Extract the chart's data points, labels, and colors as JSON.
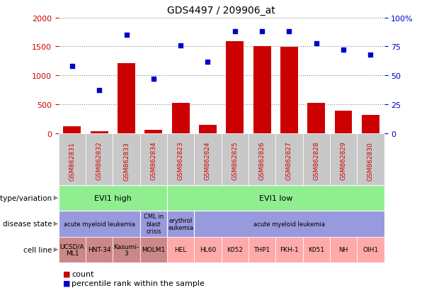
{
  "title": "GDS4497 / 209906_at",
  "samples": [
    "GSM862831",
    "GSM862832",
    "GSM862833",
    "GSM862834",
    "GSM862823",
    "GSM862824",
    "GSM862825",
    "GSM862826",
    "GSM862827",
    "GSM862828",
    "GSM862829",
    "GSM862830"
  ],
  "counts": [
    120,
    30,
    1210,
    55,
    530,
    150,
    1590,
    1510,
    1490,
    530,
    390,
    320
  ],
  "percentiles": [
    58,
    37,
    85,
    47,
    76,
    62,
    88,
    88,
    88,
    78,
    72,
    68
  ],
  "bar_color": "#cc0000",
  "dot_color": "#0000cc",
  "ylim_left": [
    0,
    2000
  ],
  "ylim_right": [
    0,
    100
  ],
  "yticks_left": [
    0,
    500,
    1000,
    1500,
    2000
  ],
  "yticks_right": [
    0,
    25,
    50,
    75,
    100
  ],
  "yticklabels_right": [
    "0",
    "25",
    "50",
    "75",
    "100%"
  ],
  "plot_bg": "#ffffff",
  "fig_bg": "#ffffff",
  "xtick_bg": "#c8c8c8",
  "genotype_row": {
    "label": "genotype/variation",
    "groups": [
      {
        "text": "EVI1 high",
        "start": 0,
        "end": 4,
        "color": "#90ee90"
      },
      {
        "text": "EVI1 low",
        "start": 4,
        "end": 12,
        "color": "#90ee90"
      }
    ]
  },
  "disease_row": {
    "label": "disease state",
    "groups": [
      {
        "text": "acute myeloid leukemia",
        "start": 0,
        "end": 3,
        "color": "#9999dd"
      },
      {
        "text": "CML in\nblast\ncrisis",
        "start": 3,
        "end": 4,
        "color": "#9999dd"
      },
      {
        "text": "erythrol\neukemia",
        "start": 4,
        "end": 5,
        "color": "#9999dd"
      },
      {
        "text": "acute myeloid leukemia",
        "start": 5,
        "end": 12,
        "color": "#9999dd"
      }
    ]
  },
  "cell_row": {
    "label": "cell line",
    "cells": [
      {
        "text": "UCSD/A\nML1",
        "color": "#cc8888"
      },
      {
        "text": "HNT-34",
        "color": "#cc8888"
      },
      {
        "text": "Kasumi-\n3",
        "color": "#cc8888"
      },
      {
        "text": "MOLM1",
        "color": "#cc8888"
      },
      {
        "text": "HEL",
        "color": "#ffaaaa"
      },
      {
        "text": "HL60",
        "color": "#ffaaaa"
      },
      {
        "text": "K052",
        "color": "#ffaaaa"
      },
      {
        "text": "THP1",
        "color": "#ffaaaa"
      },
      {
        "text": "FKH-1",
        "color": "#ffaaaa"
      },
      {
        "text": "K051",
        "color": "#ffaaaa"
      },
      {
        "text": "NH",
        "color": "#ffaaaa"
      },
      {
        "text": "OIH1",
        "color": "#ffaaaa"
      }
    ]
  },
  "left_tick_color": "#cc0000",
  "right_tick_color": "#0000cc",
  "legend_items": [
    {
      "color": "#cc0000",
      "label": "count"
    },
    {
      "color": "#0000cc",
      "label": "percentile rank within the sample"
    }
  ]
}
